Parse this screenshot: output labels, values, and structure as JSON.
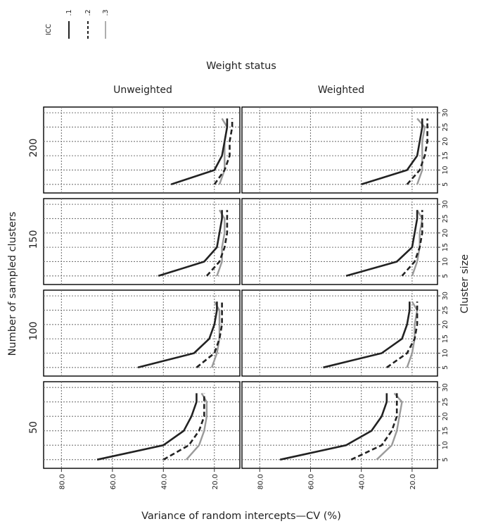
{
  "chart_data": {
    "type": "line",
    "title": "Weight status",
    "xlabel": "Variance of random intercepts—CV (%)",
    "ylabel_left": "Number of sampled clusters",
    "ylabel_right": "Cluster size",
    "column_strips": [
      "Unweighted",
      "Weighted"
    ],
    "row_strips": [
      "200",
      "150",
      "100",
      "50"
    ],
    "legend": {
      "title": "ICC",
      "entries": [
        {
          "label": ".1",
          "color": "#222222",
          "style": "solid"
        },
        {
          "label": ".2",
          "color": "#222222",
          "style": "dashed"
        },
        {
          "label": ".3",
          "color": "#9a9a9a",
          "style": "solid"
        }
      ]
    },
    "x_tick_labels": [
      "80.0",
      "60.0",
      "40.0",
      "20.0"
    ],
    "x_ticks": [
      80,
      60,
      40,
      20
    ],
    "x_range": [
      87,
      10
    ],
    "cluster_size_ticks": [
      5,
      10,
      15,
      20,
      25,
      30
    ],
    "cluster_size_tick_labels": [
      "5",
      "10",
      "15",
      "20",
      "25",
      "30"
    ],
    "cluster_size_range": [
      2,
      32
    ],
    "grid": true,
    "panels": [
      {
        "weight": "Unweighted",
        "clusters": "200",
        "series": [
          {
            "name": ".1",
            "cluster_size": [
              5,
              10,
              15,
              20,
              25,
              28
            ],
            "cv": [
              37,
              20,
              17,
              16,
              15,
              15
            ]
          },
          {
            "name": ".2",
            "cluster_size": [
              5,
              10,
              15,
              20,
              25,
              28
            ],
            "cv": [
              20,
              16,
              14,
              14,
              13,
              13
            ]
          },
          {
            "name": ".3",
            "cluster_size": [
              5,
              10,
              15,
              20,
              25,
              28
            ],
            "cv": [
              18,
              16,
              16,
              16,
              15,
              17
            ]
          }
        ]
      },
      {
        "weight": "Weighted",
        "clusters": "200",
        "series": [
          {
            "name": ".1",
            "cluster_size": [
              5,
              10,
              15,
              20,
              25,
              28
            ],
            "cv": [
              40,
              22,
              18,
              17,
              16,
              16
            ]
          },
          {
            "name": ".2",
            "cluster_size": [
              5,
              10,
              15,
              20,
              25,
              28
            ],
            "cv": [
              22,
              17,
              15,
              14,
              14,
              14
            ]
          },
          {
            "name": ".3",
            "cluster_size": [
              5,
              10,
              15,
              20,
              25,
              28
            ],
            "cv": [
              18,
              16,
              16,
              16,
              15,
              18
            ]
          }
        ]
      },
      {
        "weight": "Unweighted",
        "clusters": "150",
        "series": [
          {
            "name": ".1",
            "cluster_size": [
              5,
              10,
              15,
              20,
              25,
              28
            ],
            "cv": [
              42,
              24,
              19,
              18,
              17,
              17
            ]
          },
          {
            "name": ".2",
            "cluster_size": [
              5,
              10,
              15,
              20,
              25,
              28
            ],
            "cv": [
              23,
              18,
              16,
              15,
              15,
              15
            ]
          },
          {
            "name": ".3",
            "cluster_size": [
              5,
              10,
              15,
              20,
              25,
              28
            ],
            "cv": [
              19,
              17,
              17,
              16,
              16,
              18
            ]
          }
        ]
      },
      {
        "weight": "Weighted",
        "clusters": "150",
        "series": [
          {
            "name": ".1",
            "cluster_size": [
              5,
              10,
              15,
              20,
              25,
              28
            ],
            "cv": [
              46,
              26,
              20,
              19,
              18,
              18
            ]
          },
          {
            "name": ".2",
            "cluster_size": [
              5,
              10,
              15,
              20,
              25,
              28
            ],
            "cv": [
              24,
              19,
              17,
              16,
              16,
              16
            ]
          },
          {
            "name": ".3",
            "cluster_size": [
              5,
              10,
              15,
              20,
              25,
              28
            ],
            "cv": [
              20,
              18,
              17,
              17,
              16,
              18
            ]
          }
        ]
      },
      {
        "weight": "Unweighted",
        "clusters": "100",
        "series": [
          {
            "name": ".1",
            "cluster_size": [
              5,
              10,
              15,
              20,
              25,
              28
            ],
            "cv": [
              50,
              28,
              22,
              20,
              19,
              19
            ]
          },
          {
            "name": ".2",
            "cluster_size": [
              5,
              10,
              15,
              20,
              25,
              28
            ],
            "cv": [
              27,
              20,
              18,
              17,
              17,
              17
            ]
          },
          {
            "name": ".3",
            "cluster_size": [
              5,
              10,
              15,
              20,
              25,
              28
            ],
            "cv": [
              21,
              19,
              18,
              18,
              18,
              20
            ]
          }
        ]
      },
      {
        "weight": "Weighted",
        "clusters": "100",
        "series": [
          {
            "name": ".1",
            "cluster_size": [
              5,
              10,
              15,
              20,
              25,
              28
            ],
            "cv": [
              55,
              32,
              24,
              22,
              21,
              21
            ]
          },
          {
            "name": ".2",
            "cluster_size": [
              5,
              10,
              15,
              20,
              25,
              28
            ],
            "cv": [
              30,
              22,
              19,
              18,
              18,
              18
            ]
          },
          {
            "name": ".3",
            "cluster_size": [
              5,
              10,
              15,
              20,
              25,
              28
            ],
            "cv": [
              22,
              20,
              19,
              19,
              18,
              20
            ]
          }
        ]
      },
      {
        "weight": "Unweighted",
        "clusters": "50",
        "series": [
          {
            "name": ".1",
            "cluster_size": [
              5,
              10,
              15,
              20,
              25,
              28
            ],
            "cv": [
              66,
              40,
              32,
              29,
              27,
              27
            ]
          },
          {
            "name": ".2",
            "cluster_size": [
              5,
              10,
              15,
              20,
              25,
              28
            ],
            "cv": [
              40,
              30,
              26,
              24,
              24,
              24
            ]
          },
          {
            "name": ".3",
            "cluster_size": [
              5,
              10,
              15,
              20,
              25,
              28
            ],
            "cv": [
              31,
              26,
              24,
              23,
              23,
              25
            ]
          }
        ]
      },
      {
        "weight": "Weighted",
        "clusters": "50",
        "series": [
          {
            "name": ".1",
            "cluster_size": [
              5,
              10,
              15,
              20,
              25,
              28
            ],
            "cv": [
              72,
              46,
              36,
              32,
              30,
              30
            ]
          },
          {
            "name": ".2",
            "cluster_size": [
              5,
              10,
              15,
              20,
              25,
              28
            ],
            "cv": [
              44,
              32,
              28,
              26,
              26,
              26
            ]
          },
          {
            "name": ".3",
            "cluster_size": [
              5,
              10,
              15,
              20,
              25,
              28
            ],
            "cv": [
              34,
              28,
              26,
              25,
              24,
              27
            ]
          }
        ]
      }
    ]
  }
}
